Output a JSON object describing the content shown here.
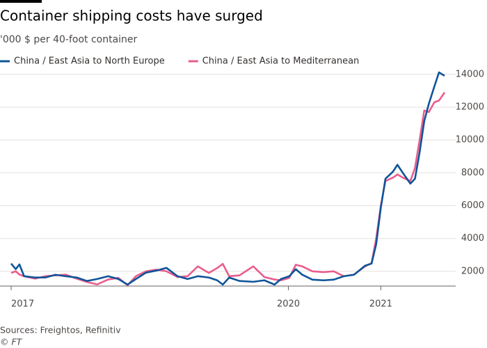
{
  "chart_data": {
    "type": "line",
    "title": "Container shipping costs have surged",
    "subtitle": "'000 $ per 40-foot container",
    "source": "Sources: Freightos, Refinitiv",
    "credit": "© FT",
    "x": [
      2017.0,
      2017.05,
      2017.09,
      2017.14,
      2017.26,
      2017.37,
      2017.48,
      2017.59,
      2017.71,
      2017.82,
      2017.93,
      2018.05,
      2018.16,
      2018.26,
      2018.35,
      2018.46,
      2018.57,
      2018.68,
      2018.8,
      2018.91,
      2019.02,
      2019.14,
      2019.23,
      2019.29,
      2019.36,
      2019.47,
      2019.62,
      2019.74,
      2019.85,
      2019.92,
      2020.01,
      2020.08,
      2020.15,
      2020.26,
      2020.38,
      2020.49,
      2020.6,
      2020.71,
      2020.83,
      2020.9,
      2020.95,
      2021.0,
      2021.05,
      2021.13,
      2021.18,
      2021.24,
      2021.32,
      2021.37,
      2021.42,
      2021.47,
      2021.52,
      2021.58,
      2021.63,
      2021.69
    ],
    "series": [
      {
        "name": "China / East Asia to North Europe",
        "color": "#0f5499",
        "values": [
          2470,
          2130,
          2420,
          1700,
          1620,
          1620,
          1790,
          1700,
          1620,
          1410,
          1530,
          1700,
          1530,
          1190,
          1530,
          1920,
          2040,
          2210,
          1700,
          1530,
          1700,
          1620,
          1450,
          1190,
          1620,
          1410,
          1360,
          1450,
          1190,
          1530,
          1700,
          2130,
          1790,
          1490,
          1450,
          1490,
          1700,
          1790,
          2340,
          2470,
          3650,
          5860,
          7640,
          8060,
          8490,
          7980,
          7340,
          7640,
          9250,
          11150,
          12210,
          13270,
          14120,
          13910
        ]
      },
      {
        "name": "China / East Asia to Mediterranean",
        "color": "#e95d8c",
        "values": [
          1900,
          2000,
          1800,
          1700,
          1550,
          1700,
          1750,
          1800,
          1550,
          1350,
          1200,
          1500,
          1600,
          1150,
          1700,
          2000,
          2100,
          2000,
          1650,
          1700,
          2300,
          1900,
          2200,
          2450,
          1700,
          1750,
          2300,
          1650,
          1500,
          1450,
          1600,
          2400,
          2300,
          2000,
          1950,
          2000,
          1700,
          1800,
          2300,
          2500,
          4000,
          6000,
          7500,
          7700,
          7900,
          7700,
          7500,
          8300,
          10000,
          11800,
          11700,
          12300,
          12400,
          12900
        ]
      }
    ],
    "xlim": [
      2017,
      2021.72
    ],
    "xticks": [
      2017,
      2020,
      2021
    ],
    "ylim": [
      1100,
      14500
    ],
    "yticks": [
      2000,
      4000,
      6000,
      8000,
      10000,
      12000,
      14000
    ],
    "grid": true
  }
}
